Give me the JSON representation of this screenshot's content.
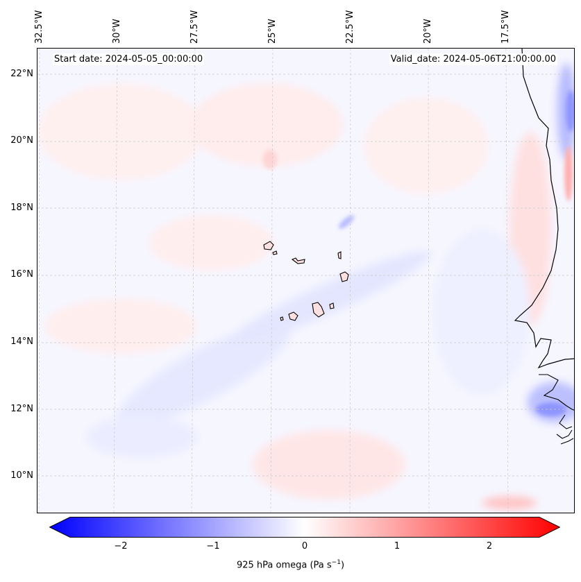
{
  "map": {
    "start_label": "Start date: 2024-05-05_00:00:00",
    "valid_label": "Valid_date: 2024-05-06T21:00:00.00",
    "latitude_labels": [
      "22°N",
      "20°N",
      "18°N",
      "16°N",
      "14°N",
      "12°N",
      "10°N"
    ],
    "longitude_labels": [
      "32.5°W",
      "30°W",
      "27.5°W",
      "25°W",
      "22.5°W",
      "20°W",
      "17.5°W"
    ],
    "features": [
      "Cape Verde islands",
      "West African coastline"
    ]
  },
  "colorbar": {
    "label_prefix": "925 hPa omega (Pa s",
    "label_exp": "−1",
    "label_suffix": ")",
    "ticks": [
      "−2",
      "−1",
      "0",
      "1",
      "2"
    ],
    "range": [
      -2.5,
      2.5
    ],
    "colormap": "bwr",
    "extend": "both"
  },
  "colors": {
    "negative": "#0000ff",
    "neutral": "#ffffff",
    "positive": "#ff0000"
  }
}
